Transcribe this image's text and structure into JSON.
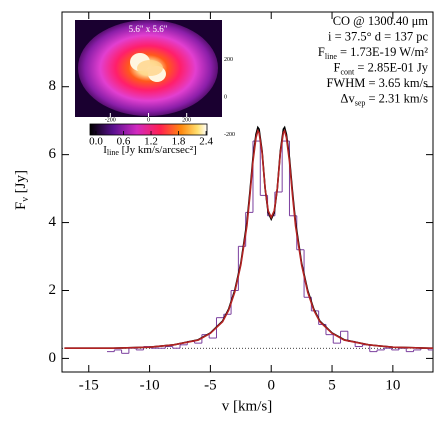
{
  "chart_data": {
    "type": "line",
    "xlabel": {
      "text": "v [km/s]"
    },
    "ylabel": {
      "text": "F",
      "sub": "ν",
      "rest": " [Jy]"
    },
    "xlim": [
      -17.2,
      13.3
    ],
    "xticks": [
      -15,
      -10,
      -5,
      0,
      5,
      10
    ],
    "ylim": [
      -0.4,
      10.2
    ],
    "yticks": [
      0,
      2,
      4,
      6,
      8
    ],
    "annotations": [
      {
        "text": "CO @ 1300.40 μm"
      },
      {
        "text": "i = 37.5°  d = 137 pc"
      },
      {
        "text": "F",
        "sub": "line",
        "rest": " = 1.73E-19 W/m²"
      },
      {
        "text": "F",
        "sub": "cont",
        "rest": " = 2.85E-01 Jy"
      },
      {
        "text": "FWHM = 3.65 km/s"
      },
      {
        "text": "Δv",
        "sub": "sep",
        "rest": " = 2.31 km/s"
      }
    ],
    "continuum_level": 0.3,
    "histogram": {
      "color": "#7b3f9e",
      "bins": [
        -13.5,
        -12.9,
        -12.3,
        -11.7,
        -11.1,
        -10.5,
        -9.9,
        -9.3,
        -8.7,
        -8.1,
        -7.5,
        -6.9,
        -6.3,
        -5.7,
        -5.1,
        -4.5,
        -3.9,
        -3.3,
        -2.7,
        -2.1,
        -1.5,
        -0.9,
        -0.3,
        0.3,
        0.9,
        1.5,
        2.1,
        2.7,
        3.3,
        3.9,
        4.5,
        5.1,
        5.7,
        6.3,
        6.9,
        7.5,
        8.1,
        8.7,
        9.3,
        9.9,
        10.5,
        11.1,
        11.7,
        12.3,
        12.9,
        13.5
      ],
      "values": [
        0.2,
        0.25,
        0.15,
        0.3,
        0.25,
        0.35,
        0.3,
        0.3,
        0.35,
        0.3,
        0.4,
        0.5,
        0.45,
        0.7,
        0.6,
        1.2,
        1.3,
        2.0,
        3.3,
        4.3,
        6.4,
        4.8,
        4.2,
        4.9,
        6.4,
        4.2,
        3.2,
        1.8,
        1.4,
        1.0,
        0.7,
        0.45,
        0.8,
        0.5,
        0.35,
        0.4,
        0.2,
        0.25,
        0.3,
        0.25,
        0.3,
        0.2,
        0.25,
        0.3,
        0.25
      ]
    },
    "x": [
      -17,
      -13,
      -10,
      -8,
      -6,
      -5,
      -4,
      -3.5,
      -3,
      -2.5,
      -2,
      -1.75,
      -1.5,
      -1.25,
      -1.1,
      -1,
      -0.75,
      -0.5,
      -0.25,
      0,
      0.25,
      0.5,
      0.75,
      1,
      1.1,
      1.25,
      1.5,
      1.75,
      2,
      2.5,
      3,
      3.5,
      4,
      5,
      6,
      8,
      10,
      13,
      13.3
    ],
    "series": [
      {
        "color": "#000000",
        "values": [
          0.3,
          0.3,
          0.33,
          0.4,
          0.55,
          0.75,
          1.1,
          1.45,
          2.0,
          2.8,
          4.0,
          4.9,
          5.9,
          6.6,
          6.8,
          6.75,
          6.1,
          5.0,
          4.3,
          4.1,
          4.3,
          5.0,
          6.1,
          6.75,
          6.8,
          6.6,
          5.9,
          4.9,
          4.0,
          2.8,
          2.0,
          1.45,
          1.1,
          0.75,
          0.55,
          0.4,
          0.33,
          0.3,
          0.3
        ]
      },
      {
        "color": "#b22222",
        "values": [
          0.3,
          0.3,
          0.33,
          0.4,
          0.54,
          0.74,
          1.08,
          1.42,
          1.95,
          2.75,
          3.9,
          4.8,
          5.8,
          6.5,
          6.7,
          6.65,
          6.05,
          5.0,
          4.35,
          4.15,
          4.35,
          5.0,
          6.05,
          6.65,
          6.7,
          6.5,
          5.8,
          4.8,
          3.9,
          2.75,
          1.95,
          1.42,
          1.08,
          0.74,
          0.54,
          0.4,
          0.33,
          0.3,
          0.3
        ]
      }
    ],
    "inset": {
      "title": "5.6\" x 5.6\"",
      "xlim": [
        -385,
        385
      ],
      "xticks": [
        -200,
        0,
        200
      ],
      "ylim": [
        -400,
        400
      ],
      "yticks": [
        200,
        0,
        -200
      ],
      "colorbar": {
        "lim": [
          -0.13,
          2.42
        ],
        "ticks": [
          {
            "value": 0,
            "label": "0.0"
          },
          {
            "value": 0.6,
            "label": "0.6"
          },
          {
            "value": 1.2,
            "label": "1.2"
          },
          {
            "value": 1.8,
            "label": "1.8"
          },
          {
            "value": 2.4,
            "label": "2.4"
          }
        ],
        "label": {
          "text": "I",
          "sub": "line",
          "rest": " [Jy km/s/arcsec²]"
        }
      }
    }
  }
}
